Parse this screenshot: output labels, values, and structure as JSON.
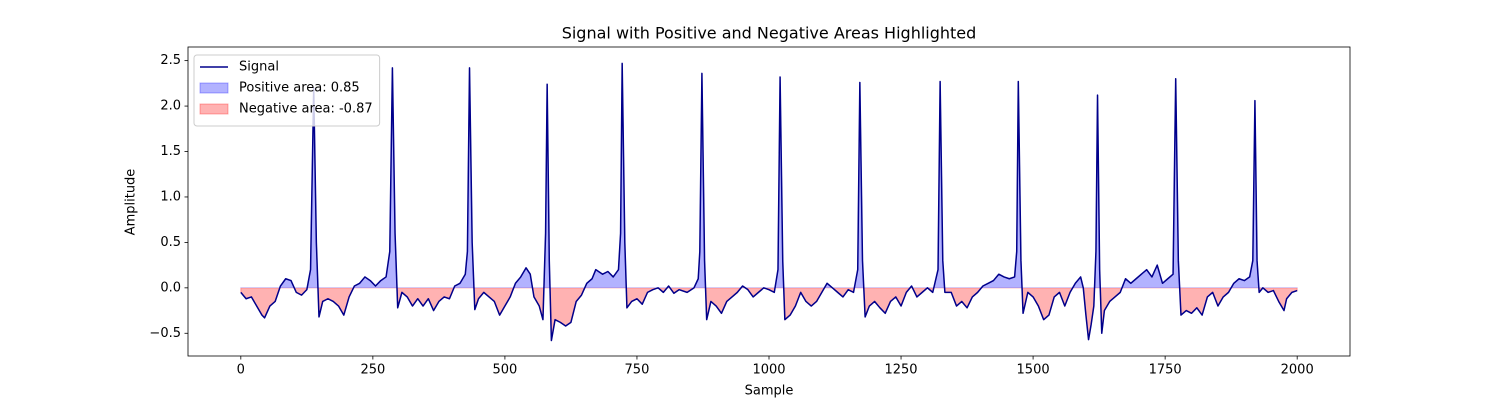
{
  "chart_data": {
    "type": "area-line",
    "title": "Signal with Positive and Negative Areas Highlighted",
    "xlabel": "Sample",
    "ylabel": "Amplitude",
    "xlim": [
      -100,
      2100
    ],
    "ylim": [
      -0.75,
      2.65
    ],
    "xticks": [
      0,
      250,
      500,
      750,
      1000,
      1250,
      1500,
      1750,
      2000
    ],
    "yticks": [
      {
        "value": -0.5,
        "label": "−0.5"
      },
      {
        "value": 0,
        "label": "0.0"
      },
      0.5,
      {
        "value": 1,
        "label": "1.0"
      },
      1.5,
      {
        "value": 2,
        "label": "2.0"
      },
      2.5
    ],
    "grid": false,
    "legend": "upper left",
    "x": [
      0,
      10,
      20,
      30,
      40,
      45,
      55,
      65,
      75,
      85,
      95,
      105,
      115,
      125,
      132,
      138,
      143,
      148,
      155,
      165,
      175,
      185,
      195,
      205,
      215,
      225,
      235,
      245,
      255,
      265,
      275,
      282,
      287,
      292,
      297,
      305,
      315,
      325,
      335,
      345,
      355,
      365,
      375,
      385,
      395,
      405,
      415,
      425,
      429,
      433,
      438,
      443,
      450,
      460,
      470,
      480,
      490,
      500,
      510,
      520,
      530,
      540,
      548,
      555,
      565,
      572,
      577,
      580,
      584,
      588,
      595,
      605,
      615,
      625,
      635,
      645,
      655,
      665,
      672,
      685,
      695,
      705,
      715,
      719,
      722,
      727,
      731,
      740,
      750,
      760,
      770,
      780,
      790,
      800,
      810,
      820,
      830,
      845,
      858,
      866,
      869,
      873,
      878,
      882,
      890,
      900,
      910,
      920,
      930,
      940,
      950,
      960,
      970,
      980,
      990,
      1000,
      1010,
      1017,
      1021,
      1026,
      1030,
      1040,
      1050,
      1060,
      1070,
      1080,
      1090,
      1100,
      1110,
      1120,
      1130,
      1140,
      1150,
      1160,
      1168,
      1172,
      1177,
      1182,
      1190,
      1200,
      1210,
      1220,
      1230,
      1240,
      1250,
      1260,
      1270,
      1280,
      1290,
      1300,
      1310,
      1320,
      1324,
      1329,
      1333,
      1345,
      1355,
      1365,
      1375,
      1385,
      1395,
      1405,
      1415,
      1425,
      1435,
      1445,
      1455,
      1465,
      1469,
      1472,
      1477,
      1481,
      1490,
      1500,
      1510,
      1520,
      1530,
      1540,
      1550,
      1560,
      1570,
      1580,
      1590,
      1595,
      1600,
      1605,
      1610,
      1615,
      1619,
      1622,
      1626,
      1630,
      1635,
      1645,
      1655,
      1665,
      1675,
      1685,
      1695,
      1705,
      1715,
      1725,
      1735,
      1745,
      1755,
      1765,
      1770,
      1775,
      1780,
      1790,
      1800,
      1810,
      1820,
      1830,
      1840,
      1850,
      1860,
      1870,
      1880,
      1890,
      1900,
      1910,
      1916,
      1920,
      1924,
      1928,
      1935,
      1945,
      1955,
      1965,
      1975,
      1980,
      1990,
      2000
    ],
    "series": [
      {
        "name": "Signal",
        "color": "#00008b",
        "values": [
          -0.05,
          -0.12,
          -0.1,
          -0.2,
          -0.3,
          -0.33,
          -0.2,
          -0.15,
          0.02,
          0.1,
          0.08,
          -0.05,
          -0.08,
          -0.02,
          0.2,
          2.2,
          0.5,
          -0.32,
          -0.15,
          -0.12,
          -0.15,
          -0.2,
          -0.3,
          -0.1,
          0.02,
          0.05,
          0.12,
          0.08,
          0.02,
          0.08,
          0.12,
          0.4,
          2.42,
          0.6,
          -0.22,
          -0.05,
          -0.1,
          -0.2,
          -0.12,
          -0.2,
          -0.12,
          -0.25,
          -0.15,
          -0.1,
          -0.12,
          0.02,
          0.05,
          0.15,
          0.4,
          2.42,
          0.5,
          -0.24,
          -0.12,
          -0.05,
          -0.1,
          -0.15,
          -0.3,
          -0.2,
          -0.1,
          0.05,
          0.12,
          0.22,
          0.15,
          -0.1,
          -0.2,
          -0.35,
          0.6,
          2.24,
          0.3,
          -0.58,
          -0.35,
          -0.38,
          -0.42,
          -0.38,
          -0.15,
          -0.08,
          0.05,
          0.1,
          0.2,
          0.15,
          0.18,
          0.12,
          0.2,
          0.6,
          2.47,
          0.5,
          -0.22,
          -0.15,
          -0.12,
          -0.18,
          -0.05,
          -0.02,
          0.0,
          -0.05,
          0.02,
          -0.06,
          -0.02,
          -0.05,
          0.0,
          0.1,
          0.4,
          2.36,
          0.3,
          -0.35,
          -0.15,
          -0.2,
          -0.28,
          -0.15,
          -0.1,
          -0.05,
          0.02,
          -0.02,
          -0.1,
          -0.05,
          0.0,
          -0.02,
          -0.05,
          0.2,
          2.32,
          0.3,
          -0.35,
          -0.3,
          -0.2,
          -0.05,
          -0.15,
          -0.2,
          -0.15,
          -0.05,
          0.05,
          0.0,
          -0.05,
          -0.1,
          -0.02,
          -0.05,
          0.2,
          2.26,
          0.3,
          -0.32,
          -0.2,
          -0.15,
          -0.22,
          -0.28,
          -0.15,
          -0.1,
          -0.2,
          -0.05,
          0.02,
          -0.1,
          -0.05,
          0.0,
          -0.05,
          0.2,
          2.27,
          0.3,
          -0.05,
          -0.05,
          -0.2,
          -0.15,
          -0.22,
          -0.1,
          -0.05,
          0.02,
          0.05,
          0.08,
          0.15,
          0.12,
          0.1,
          0.12,
          0.4,
          2.27,
          0.3,
          -0.28,
          -0.05,
          -0.1,
          -0.2,
          -0.35,
          -0.3,
          -0.1,
          -0.05,
          -0.2,
          -0.05,
          0.05,
          0.12,
          0.0,
          -0.3,
          -0.57,
          -0.4,
          -0.2,
          0.4,
          2.12,
          0.2,
          -0.5,
          -0.25,
          -0.15,
          -0.1,
          -0.05,
          0.1,
          0.05,
          0.1,
          0.15,
          0.2,
          0.12,
          0.25,
          0.05,
          0.1,
          0.15,
          2.3,
          0.3,
          -0.3,
          -0.25,
          -0.28,
          -0.22,
          -0.3,
          -0.1,
          -0.05,
          -0.2,
          -0.1,
          -0.05,
          0.05,
          0.1,
          0.08,
          0.12,
          0.3,
          2.06,
          0.3,
          -0.05,
          0.0,
          -0.05,
          -0.03,
          -0.15,
          -0.25,
          -0.12,
          -0.05,
          -0.03
        ]
      }
    ],
    "fills": [
      {
        "name": "Positive area: 0.85",
        "color": "#0000ff",
        "alpha": 0.3,
        "side": "positive"
      },
      {
        "name": "Negative area: -0.87",
        "color": "#ff0000",
        "alpha": 0.3,
        "side": "negative"
      }
    ]
  }
}
